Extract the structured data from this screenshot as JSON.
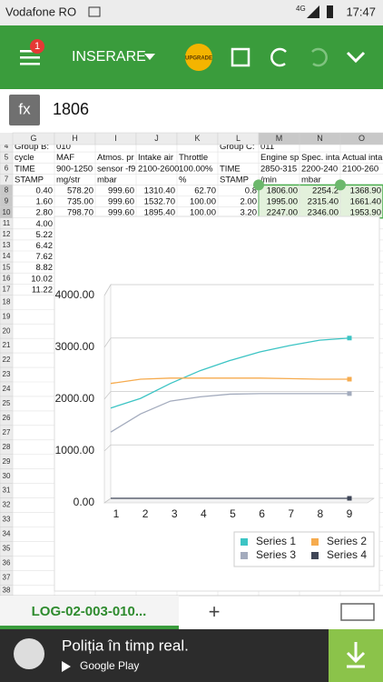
{
  "status_bar": {
    "carrier": "Vodafone RO",
    "network": "4G",
    "time": "17:47"
  },
  "toolbar": {
    "badge": "1",
    "menu": "INSERARE",
    "upgrade": "UPGRADE"
  },
  "formula_bar": {
    "label": "fx",
    "value": "1806"
  },
  "sheet": {
    "columns": [
      "G",
      "H",
      "I",
      "J",
      "K",
      "L",
      "M",
      "N",
      "O"
    ],
    "row_numbers": [
      4,
      5,
      6,
      7,
      8,
      9,
      10,
      11,
      12,
      13,
      14,
      15,
      16,
      17,
      18,
      19,
      20,
      21,
      22,
      23,
      24,
      25,
      26,
      27,
      28,
      29,
      30,
      31,
      32,
      33,
      34,
      35,
      36,
      37,
      38
    ],
    "rows": [
      [
        "Group B:",
        "010",
        null,
        null,
        null,
        "Group C:",
        "011",
        null,
        null
      ],
      [
        "cycle",
        "MAF",
        "Atmos. pr",
        "Intake air",
        "Throttle",
        null,
        "Engine sp",
        "Spec. inta",
        "Actual inta"
      ],
      [
        "TIME",
        "900-1250",
        "sensor -f9",
        "2100-2600",
        "100.00%",
        "TIME",
        "2850-315",
        "2200-240",
        "2100-260"
      ],
      [
        "STAMP",
        "mg/str",
        "mbar",
        null,
        "%",
        "STAMP",
        "/min",
        "mbar",
        null
      ],
      [
        "0.40",
        "578.20",
        "999.60",
        "1310.40",
        "62.70",
        "0.8",
        "1806.00",
        "2254.2",
        "1368.90"
      ],
      [
        "1.60",
        "735.00",
        "999.60",
        "1532.70",
        "100.00",
        "2.00",
        "1995.00",
        "2315.40",
        "1661.40"
      ],
      [
        "2.80",
        "798.70",
        "999.60",
        "1895.40",
        "100.00",
        "3.20",
        "2247.00",
        "2346.00",
        "1953.90"
      ],
      [
        "4.00"
      ],
      [
        "5.22"
      ],
      [
        "6.42"
      ],
      [
        "7.62"
      ],
      [
        "8.82"
      ],
      [
        "10.02"
      ],
      [
        "11.22"
      ]
    ]
  },
  "chart_data": {
    "type": "line",
    "categories": [
      "1",
      "2",
      "3",
      "4",
      "5",
      "6",
      "7",
      "8",
      "9"
    ],
    "ylim": [
      0,
      4000
    ],
    "yticks": [
      {
        "value": 0,
        "label": "0.00"
      },
      {
        "value": 1000,
        "label": "1000.00"
      },
      {
        "value": 2000,
        "label": "2000.00"
      },
      {
        "value": 3000,
        "label": "3000.00"
      },
      {
        "value": 4000,
        "label": "4000.00"
      }
    ],
    "grid": true,
    "series": [
      {
        "name": "Series 1",
        "color": "#3cc4c4",
        "values": [
          1690,
          1870,
          2150,
          2390,
          2580,
          2740,
          2860,
          2960,
          3000
        ]
      },
      {
        "name": "Series 2",
        "color": "#f6ab4e",
        "values": [
          2150,
          2230,
          2250,
          2250,
          2250,
          2250,
          2240,
          2230,
          2230
        ]
      },
      {
        "name": "Series 3",
        "color": "#a3abbd",
        "values": [
          1240,
          1580,
          1820,
          1900,
          1950,
          1960,
          1960,
          1960,
          1960
        ]
      },
      {
        "name": "Series 4",
        "color": "#3f4657",
        "values": [
          0,
          0,
          0,
          0,
          0,
          0,
          0,
          0,
          0
        ]
      }
    ]
  },
  "tabs": {
    "sheet_name": "LOG-02-003-010...",
    "add": "+"
  },
  "ad": {
    "title": "Poliția în timp real.",
    "store": "Google Play"
  }
}
